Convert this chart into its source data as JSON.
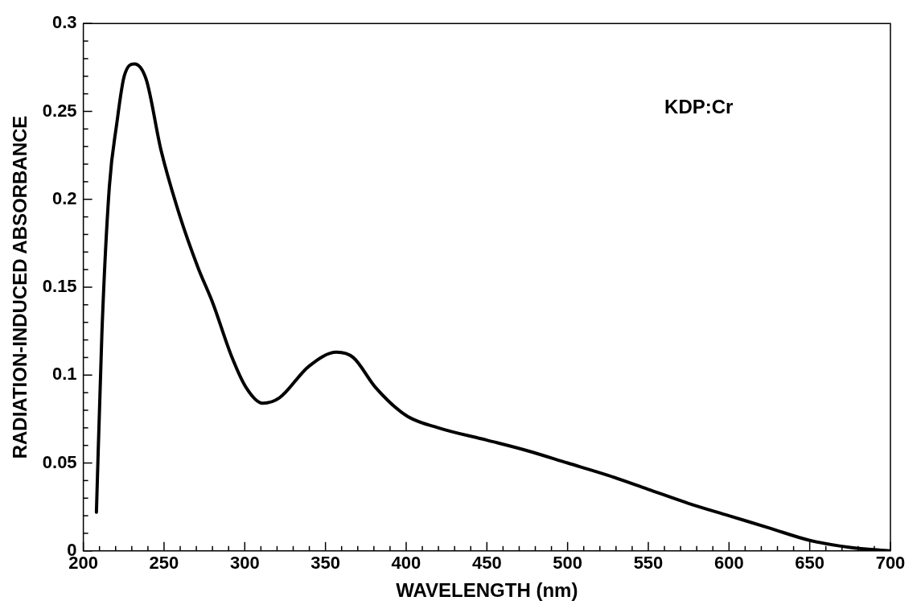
{
  "chart_data": {
    "type": "line",
    "xlabel": "WAVELENGTH (nm)",
    "ylabel": "RADIATION-INDUCED ABSORBANCE",
    "annotations": [
      "KDP:Cr"
    ],
    "color": "#000000",
    "marker": "none",
    "line_style": "solid",
    "grid": false,
    "legend": false,
    "x": [
      208.1,
      211.5,
      216.1,
      220.7,
      225.3,
      231.7,
      239.0,
      248.1,
      259.6,
      271.1,
      280.2,
      291.7,
      300.8,
      311.1,
      321.4,
      339.7,
      356.9,
      367.2,
      381.0,
      400,
      420,
      450,
      475,
      500,
      525,
      550,
      575,
      600,
      625,
      650,
      675,
      700
    ],
    "values": [
      0.022,
      0.124,
      0.207,
      0.243,
      0.27,
      0.277,
      0.268,
      0.228,
      0.191,
      0.161,
      0.141,
      0.111,
      0.093,
      0.084,
      0.087,
      0.105,
      0.113,
      0.11,
      0.093,
      0.077,
      0.07,
      0.063,
      0.057,
      0.05,
      0.043,
      0.035,
      0.027,
      0.02,
      0.013,
      0.006,
      0.002,
      0
    ],
    "xlim": [
      200,
      700
    ],
    "xticks": [
      200,
      {
        "value": 210,
        "label": null
      },
      {
        "value": 220,
        "label": null
      },
      {
        "value": 230,
        "label": null
      },
      {
        "value": 240,
        "label": null
      },
      250,
      {
        "value": 260,
        "label": null
      },
      {
        "value": 270,
        "label": null
      },
      {
        "value": 280,
        "label": null
      },
      {
        "value": 290,
        "label": null
      },
      300,
      {
        "value": 310,
        "label": null
      },
      {
        "value": 320,
        "label": null
      },
      {
        "value": 330,
        "label": null
      },
      {
        "value": 340,
        "label": null
      },
      350,
      {
        "value": 360,
        "label": null
      },
      {
        "value": 370,
        "label": null
      },
      {
        "value": 380,
        "label": null
      },
      {
        "value": 390,
        "label": null
      },
      400,
      {
        "value": 410,
        "label": null
      },
      {
        "value": 420,
        "label": null
      },
      {
        "value": 430,
        "label": null
      },
      {
        "value": 440,
        "label": null
      },
      450,
      {
        "value": 460,
        "label": null
      },
      {
        "value": 470,
        "label": null
      },
      {
        "value": 480,
        "label": null
      },
      {
        "value": 490,
        "label": null
      },
      500,
      {
        "value": 510,
        "label": null
      },
      {
        "value": 520,
        "label": null
      },
      {
        "value": 530,
        "label": null
      },
      {
        "value": 540,
        "label": null
      },
      550,
      {
        "value": 560,
        "label": null
      },
      {
        "value": 570,
        "label": null
      },
      {
        "value": 580,
        "label": null
      },
      {
        "value": 590,
        "label": null
      },
      600,
      {
        "value": 610,
        "label": null
      },
      {
        "value": 620,
        "label": null
      },
      {
        "value": 630,
        "label": null
      },
      {
        "value": 640,
        "label": null
      },
      650,
      {
        "value": 660,
        "label": null
      },
      {
        "value": 670,
        "label": null
      },
      {
        "value": 680,
        "label": null
      },
      {
        "value": 690,
        "label": null
      },
      700
    ],
    "ylim": [
      0,
      0.3
    ],
    "yticks": [
      0,
      {
        "value": 0.01,
        "label": null
      },
      {
        "value": 0.02,
        "label": null
      },
      {
        "value": 0.03,
        "label": null
      },
      {
        "value": 0.04,
        "label": null
      },
      0.05,
      {
        "value": 0.06,
        "label": null
      },
      {
        "value": 0.07,
        "label": null
      },
      {
        "value": 0.08,
        "label": null
      },
      {
        "value": 0.09,
        "label": null
      },
      0.1,
      {
        "value": 0.11,
        "label": null
      },
      {
        "value": 0.12,
        "label": null
      },
      {
        "value": 0.13,
        "label": null
      },
      {
        "value": 0.14,
        "label": null
      },
      0.15,
      {
        "value": 0.16,
        "label": null
      },
      {
        "value": 0.17,
        "label": null
      },
      {
        "value": 0.18,
        "label": null
      },
      {
        "value": 0.19,
        "label": null
      },
      0.2,
      {
        "value": 0.21,
        "label": null
      },
      {
        "value": 0.22,
        "label": null
      },
      {
        "value": 0.23,
        "label": null
      },
      {
        "value": 0.24,
        "label": null
      },
      0.25,
      {
        "value": 0.26,
        "label": null
      },
      {
        "value": 0.27,
        "label": null
      },
      {
        "value": 0.28,
        "label": null
      },
      {
        "value": 0.29,
        "label": null
      },
      0.3
    ]
  }
}
